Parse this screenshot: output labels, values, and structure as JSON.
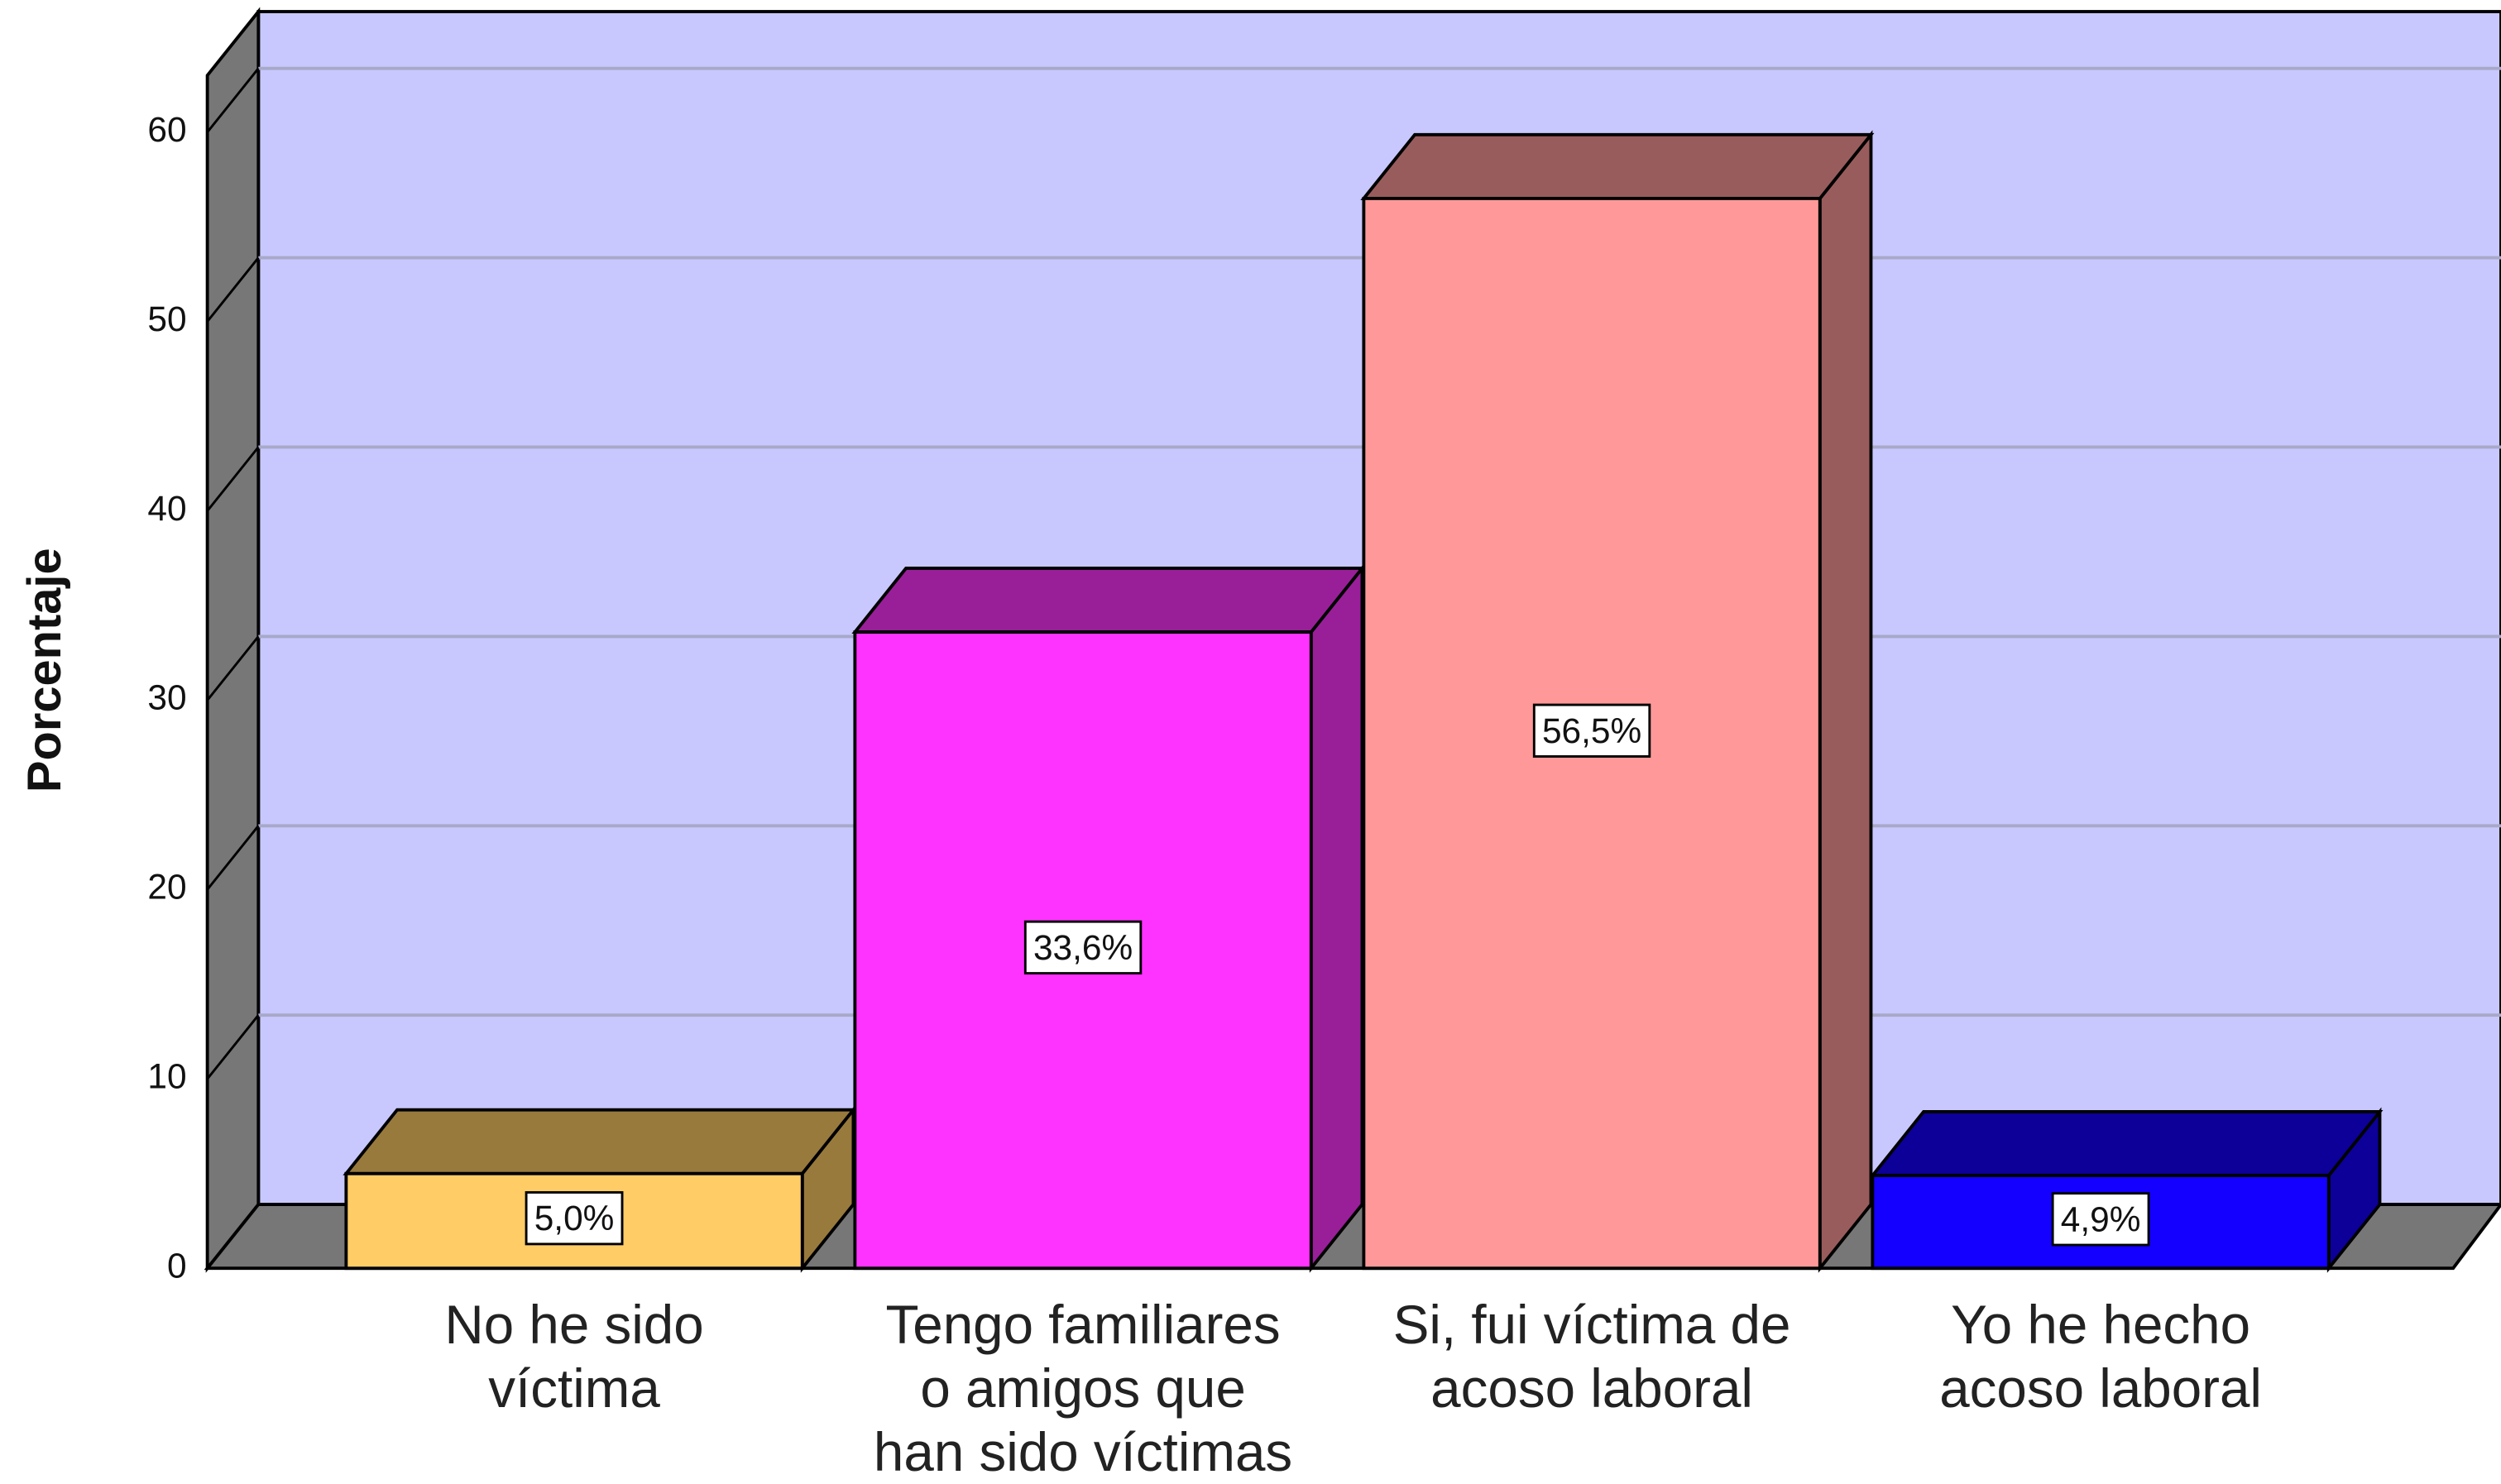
{
  "chart_data": {
    "type": "bar3d",
    "ylabel": "Porcentaje",
    "categories": [
      [
        "No he sido",
        "víctima"
      ],
      [
        "Tengo familiares",
        "o amigos que",
        "han sido víctimas"
      ],
      [
        "Si, fui víctima de",
        "acoso laboral"
      ],
      [
        "Yo he hecho",
        "acoso laboral"
      ]
    ],
    "values": [
      5.0,
      33.6,
      56.5,
      4.9
    ],
    "value_labels": [
      "5,0%",
      "33,6%",
      "56,5%",
      "4,9%"
    ],
    "colors": [
      "#ffcc66",
      "#ff33ff",
      "#ff9999",
      "#1400ff"
    ],
    "wall_color": "#c8c8ff",
    "ylim": [
      0,
      63
    ],
    "yticks": [
      0,
      10,
      20,
      30,
      40,
      50,
      60
    ],
    "grid": true
  }
}
